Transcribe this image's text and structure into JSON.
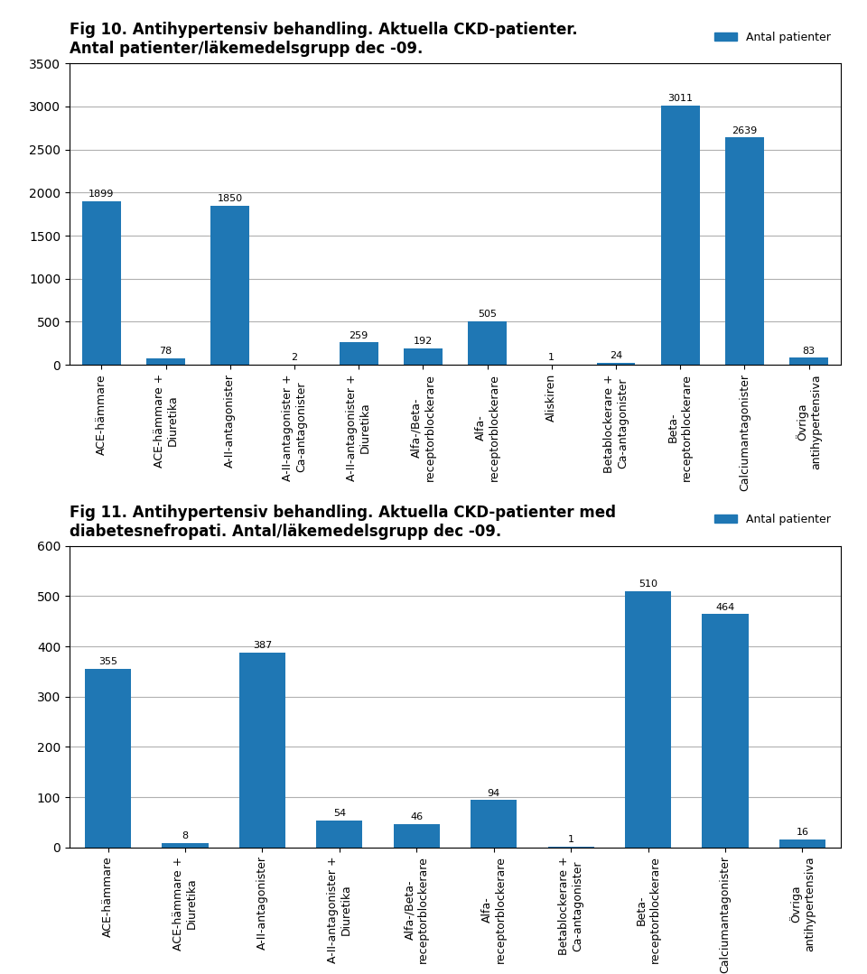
{
  "chart_data": [
    {
      "type": "bar",
      "title": "Fig 10. Antihypertensiv behandling. Aktuella CKD-patienter.\nAntal patienter/läkemedelsgrupp dec -09.",
      "categories": [
        "ACE-hämmare",
        "ACE-hämmare +\nDiuretika",
        "A-II-antagonister",
        "A-II-antagonister +\nCa-antagonister",
        "A-II-antagonister +\nDiuretika",
        "Alfa-/Beta-\nreceptorblockerare",
        "Alfa-\nreceptorblockerare",
        "Aliskiren",
        "Betablockerare +\nCa-antagonister",
        "Beta-\nreceptorblockerare",
        "Calciumantagonister",
        "Övriga\nantihypertensiva"
      ],
      "series": [
        {
          "name": "Antal patienter",
          "values": [
            1899,
            78,
            1850,
            2,
            259,
            192,
            505,
            1,
            24,
            3011,
            2639,
            83
          ]
        }
      ],
      "ylim": [
        0,
        3500
      ],
      "yticks": [
        0,
        500,
        1000,
        1500,
        2000,
        2500,
        3000,
        3500
      ],
      "grid": true,
      "legend": "upper right",
      "data_labels": true
    },
    {
      "type": "bar",
      "title": "Fig 11. Antihypertensiv behandling. Aktuella CKD-patienter med\ndiabetesnefropati. Antal/läkemedelsgrupp dec -09.",
      "categories": [
        "ACE-hämmare",
        "ACE-hämmare +\nDiuretika",
        "A-II-antagonister",
        "A-II-antagonister +\nDiuretika",
        "Alfa-/Beta-\nreceptorblockerare",
        "Alfa-\nreceptorblockerare",
        "Betablockerare +\nCa-antagonister",
        "Beta-\nreceptorblockerare",
        "Calciumantagonister",
        "Övriga\nantihypertensiva"
      ],
      "series": [
        {
          "name": "Antal patienter",
          "values": [
            355,
            8,
            387,
            54,
            46,
            94,
            1,
            510,
            464,
            16
          ]
        }
      ],
      "ylim": [
        0,
        600
      ],
      "yticks": [
        0,
        100,
        200,
        300,
        400,
        500,
        600
      ],
      "grid": true,
      "legend": "upper right",
      "data_labels": true
    }
  ]
}
